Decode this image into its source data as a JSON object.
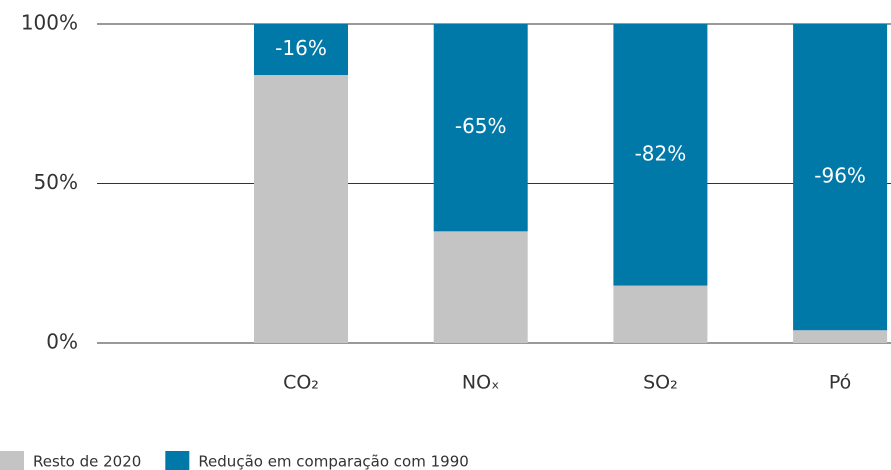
{
  "chart_data": {
    "type": "stacked_bar",
    "categories": [
      "CO₂",
      "NOₓ",
      "SO₂",
      "Pó"
    ],
    "series": [
      {
        "name": "Resto de 2020",
        "color": "#c4c4c4",
        "values": [
          84,
          35,
          18,
          4
        ]
      },
      {
        "name": "Redução em comparação com 1990",
        "color": "#0079a8",
        "values": [
          16,
          65,
          82,
          96
        ],
        "value_labels": [
          "-16%",
          "-65%",
          "-82%",
          "-96%"
        ]
      }
    ],
    "ylim": [
      0,
      100
    ],
    "yticks": [
      {
        "value": 0,
        "label": "0%"
      },
      {
        "value": 50,
        "label": "50%"
      },
      {
        "value": 100,
        "label": "100%"
      }
    ],
    "grid": true,
    "legend": "bottom-left"
  }
}
